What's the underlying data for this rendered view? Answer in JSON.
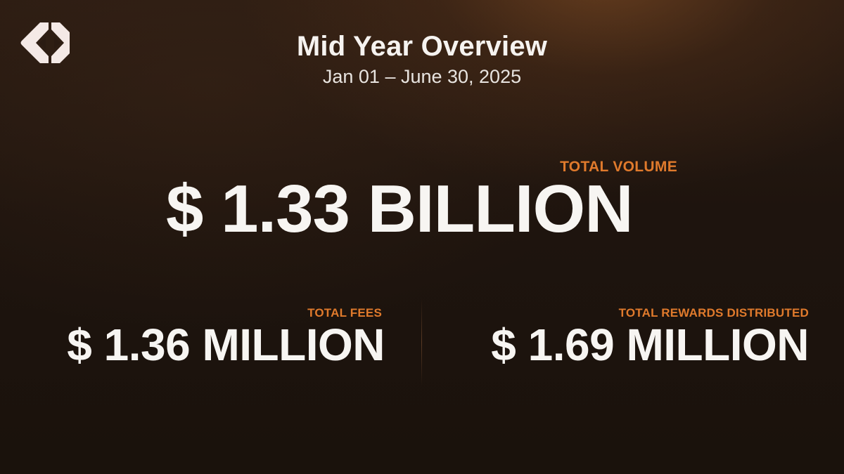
{
  "logo": {
    "icon": "brand-chevrons-icon",
    "color": "#f4e9e6"
  },
  "header": {
    "title": "Mid Year Overview",
    "date_range": "Jan 01 – June 30, 2025"
  },
  "main_stat": {
    "label": "TOTAL VOLUME",
    "value": "$ 1.33 BILLION"
  },
  "stats": [
    {
      "label": "TOTAL FEES",
      "value": "$ 1.36 MILLION"
    },
    {
      "label": "TOTAL REWARDS DISTRIBUTED",
      "value": "$ 1.69 MILLION"
    }
  ],
  "colors": {
    "accent": "#e07a2c",
    "text": "#f7f5f2",
    "background": "#1e140e"
  }
}
